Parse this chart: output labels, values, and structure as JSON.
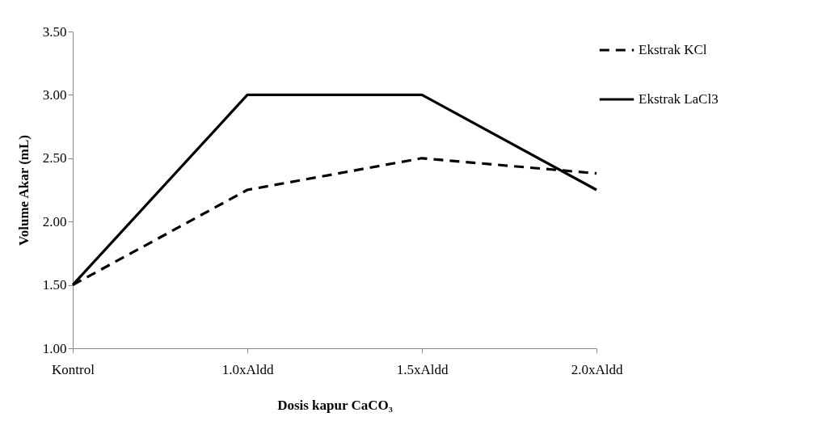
{
  "chart_data": {
    "type": "line",
    "xlabel": "Dosis kapur CaCO₃",
    "ylabel": "Volume Akar (mL)",
    "categories": [
      "Kontrol",
      "1.0xAldd",
      "1.5xAldd",
      "2.0xAldd"
    ],
    "series": [
      {
        "name": "Ekstrak KCl",
        "color": "#000000",
        "line_style": "dashed",
        "values": [
          1.5,
          2.25,
          2.5,
          2.38
        ]
      },
      {
        "name": "Ekstrak LaCl3",
        "color": "#000000",
        "line_style": "solid",
        "values": [
          1.5,
          3.0,
          3.0,
          2.25
        ]
      }
    ],
    "ylim": [
      1.0,
      3.5
    ],
    "yticks": [
      {
        "value": 1.0,
        "label": "1.00"
      },
      {
        "value": 1.5,
        "label": "1.50"
      },
      {
        "value": 2.0,
        "label": "2.00"
      },
      {
        "value": 2.5,
        "label": "2.50"
      },
      {
        "value": 3.0,
        "label": "3.00"
      },
      {
        "value": 3.5,
        "label": "3.50"
      }
    ],
    "grid": false,
    "legend": "right",
    "marker": "none"
  }
}
